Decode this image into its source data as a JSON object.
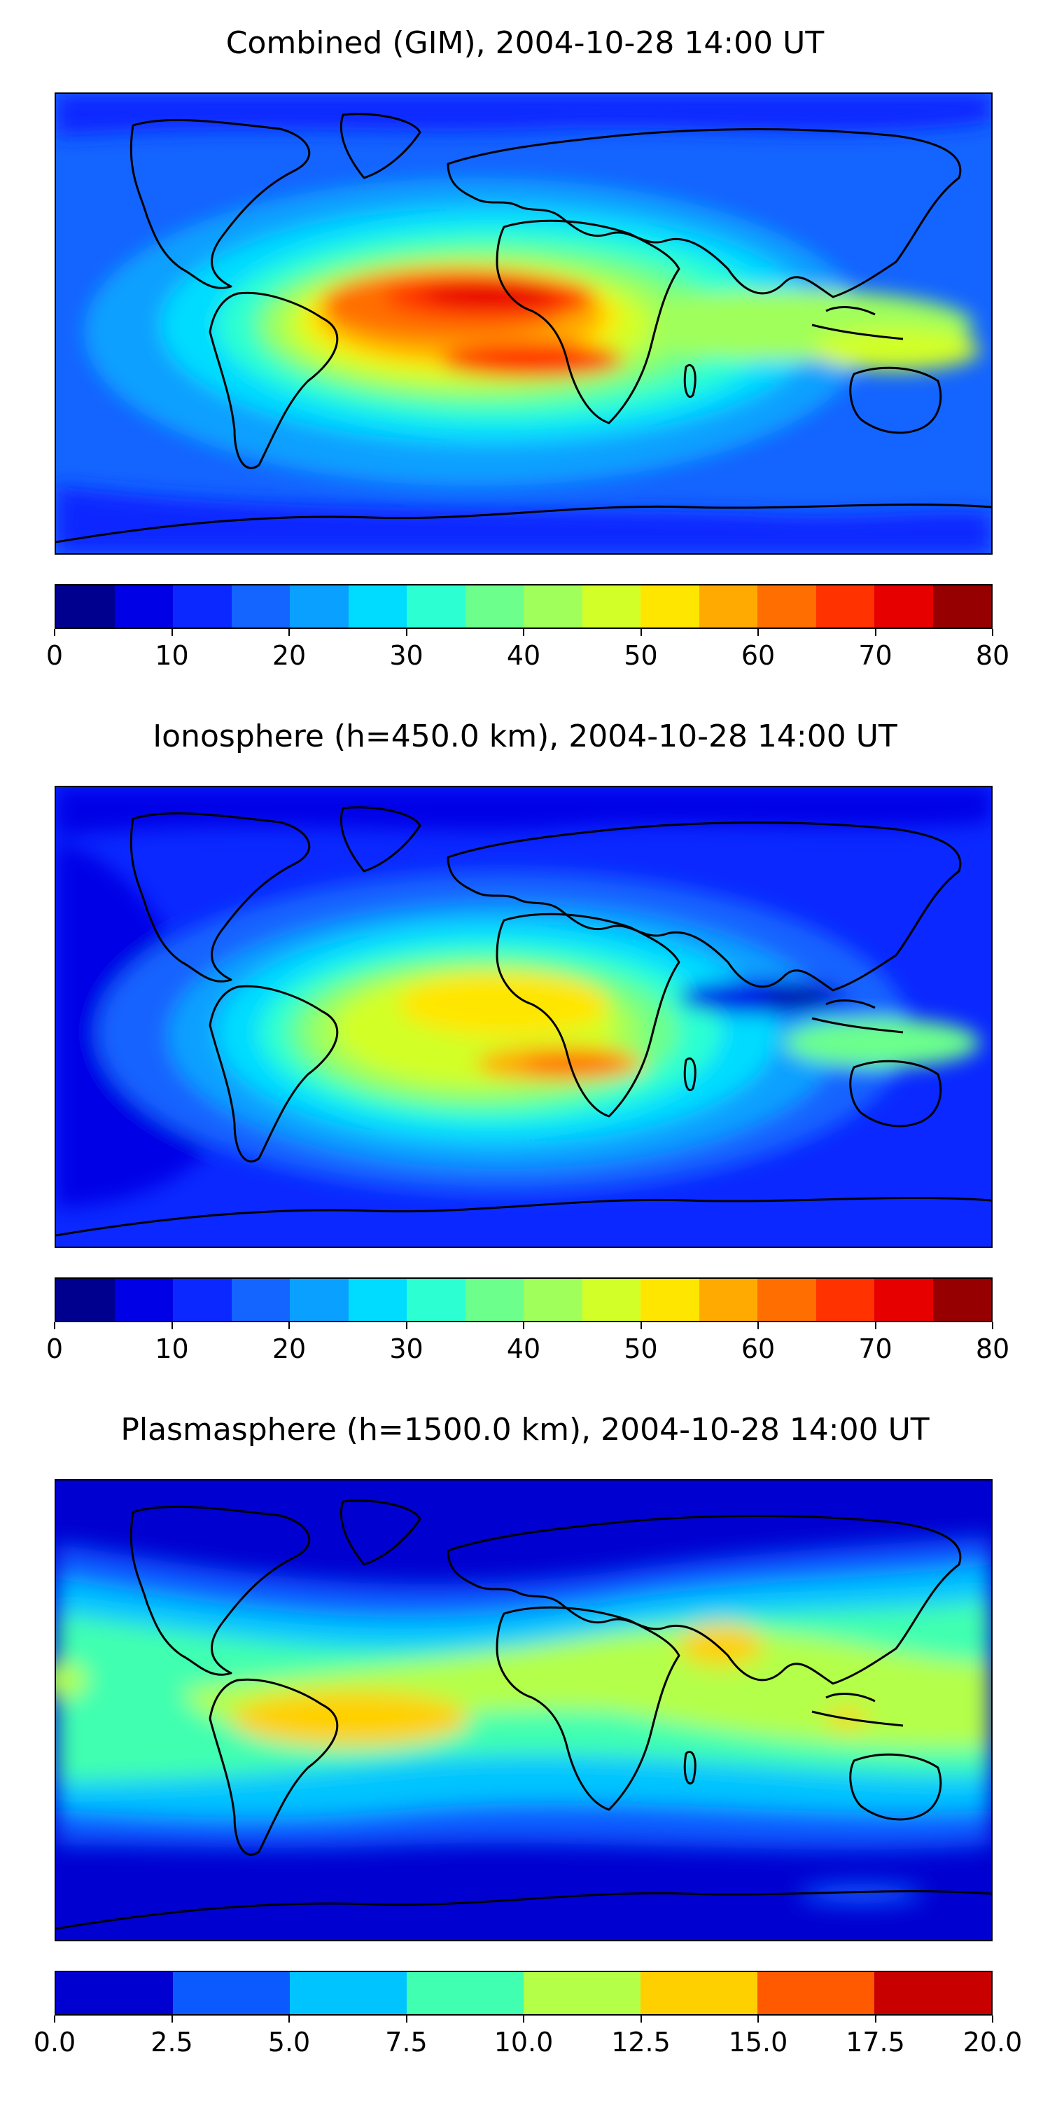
{
  "chart_data": [
    {
      "type": "heatmap",
      "title": "Combined (GIM), 2004-10-28 14:00 UT",
      "xlabel": "",
      "ylabel": "",
      "colorbar": {
        "min": 0,
        "max": 80,
        "ticks": [
          "0",
          "10",
          "20",
          "30",
          "40",
          "50",
          "60",
          "70",
          "80"
        ],
        "levels": 16
      },
      "background_level": 3,
      "features": [
        {
          "name": "americas-crest",
          "level": 12
        },
        {
          "name": "africa-north-crest",
          "level": 14
        },
        {
          "name": "africa-south-crest",
          "level": 13
        },
        {
          "name": "asia-tongue",
          "level": 8
        },
        {
          "name": "australia-tongue",
          "level": 9
        }
      ]
    },
    {
      "type": "heatmap",
      "title": "Ionosphere  (h=450.0 km), 2004-10-28 14:00 UT",
      "xlabel": "",
      "ylabel": "",
      "colorbar": {
        "min": 0,
        "max": 80,
        "ticks": [
          "0",
          "10",
          "20",
          "30",
          "40",
          "50",
          "60",
          "70",
          "80"
        ],
        "levels": 16
      },
      "background_level": 2,
      "features": [
        {
          "name": "africa-crest",
          "level": 10
        },
        {
          "name": "africa-south-crest",
          "level": 12
        },
        {
          "name": "americas-crest",
          "level": 9
        },
        {
          "name": "asia-tongue",
          "level": 7
        }
      ]
    },
    {
      "type": "heatmap",
      "title": "Plasmasphere (h=1500.0 km), 2004-10-28 14:00 UT",
      "xlabel": "",
      "ylabel": "",
      "colorbar": {
        "min": 0.0,
        "max": 20.0,
        "ticks": [
          "0.0",
          "2.5",
          "5.0",
          "7.5",
          "10.0",
          "12.5",
          "15.0",
          "17.5",
          "20.0"
        ],
        "levels": 8
      },
      "background_level": 0,
      "features": [
        {
          "name": "equatorial-band",
          "level": 3
        },
        {
          "name": "tropical-band",
          "level": 4
        },
        {
          "name": "south-america-max",
          "level": 5
        },
        {
          "name": "arabia-max",
          "level": 5
        }
      ]
    }
  ],
  "colors": {
    "palette16": [
      "#00008f",
      "#0000e6",
      "#0a28ff",
      "#1464ff",
      "#0aa0ff",
      "#00dcff",
      "#2cffd2",
      "#6cff8c",
      "#a0ff5a",
      "#d2ff28",
      "#ffe600",
      "#ffaa00",
      "#ff6e00",
      "#ff3200",
      "#e60000",
      "#960000"
    ],
    "palette8": [
      "#0000d0",
      "#0a5aff",
      "#00c4ff",
      "#40ffb0",
      "#b4ff48",
      "#ffd000",
      "#ff5a00",
      "#c80000"
    ]
  }
}
